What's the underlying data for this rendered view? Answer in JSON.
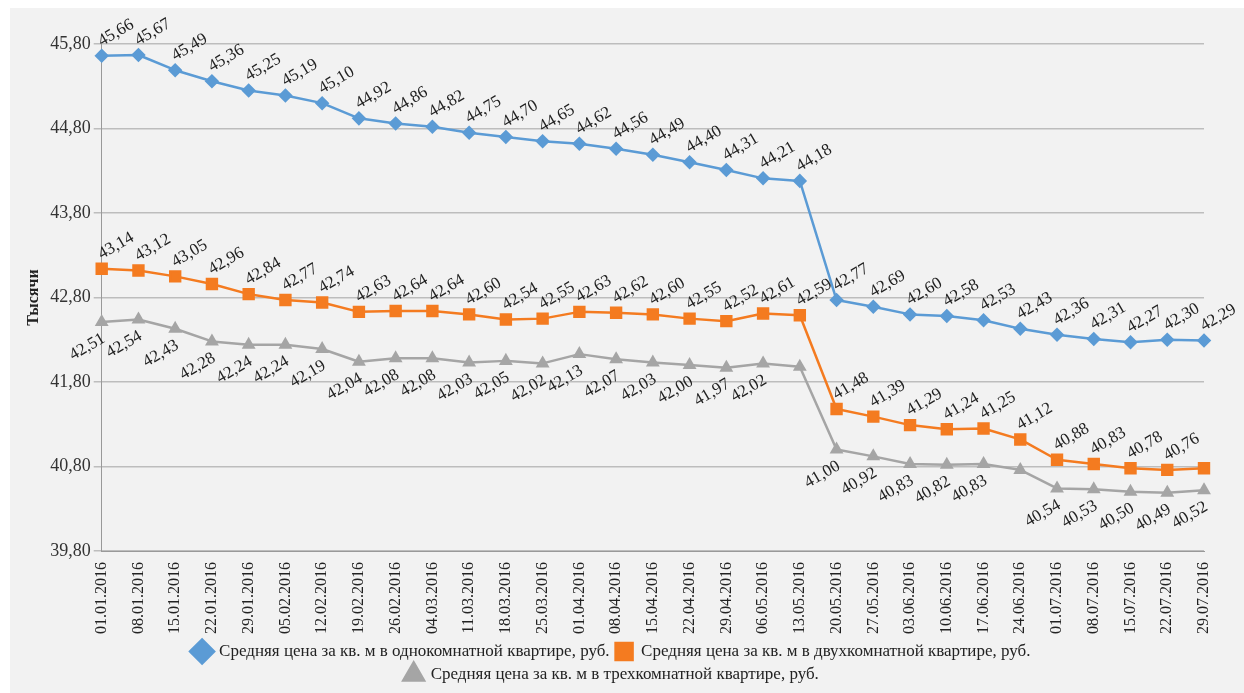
{
  "chart_data": {
    "type": "line",
    "ylabel": "Тысячи",
    "categories": [
      "01.01.2016",
      "08.01.2016",
      "15.01.2016",
      "22.01.2016",
      "29.01.2016",
      "05.02.2016",
      "12.02.2016",
      "19.02.2016",
      "26.02.2016",
      "04.03.2016",
      "11.03.2016",
      "18.03.2016",
      "25.03.2016",
      "01.04.2016",
      "08.04.2016",
      "15.04.2016",
      "22.04.2016",
      "29.04.2016",
      "06.05.2016",
      "13.05.2016",
      "20.05.2016",
      "27.05.2016",
      "03.06.2016",
      "10.06.2016",
      "17.06.2016",
      "24.06.2016",
      "01.07.2016",
      "08.07.2016",
      "15.07.2016",
      "22.07.2016",
      "29.07.2016"
    ],
    "series": [
      {
        "name": "Средняя цена за кв. м в однокомнатной квартире, руб.",
        "color": "#5b9bd5",
        "marker": "diamond",
        "values": [
          45.66,
          45.67,
          45.49,
          45.36,
          45.25,
          45.19,
          45.1,
          44.92,
          44.86,
          44.82,
          44.75,
          44.7,
          44.65,
          44.62,
          44.56,
          44.49,
          44.4,
          44.31,
          44.21,
          44.18,
          42.77,
          42.69,
          42.6,
          42.58,
          42.53,
          42.43,
          42.36,
          42.31,
          42.27,
          42.3,
          42.29
        ],
        "value_labels": [
          "45,66",
          "45,67",
          "45,49",
          "45,36",
          "45,25",
          "45,19",
          "45,10",
          "44,92",
          "44,86",
          "44,82",
          "44,75",
          "44,70",
          "44,65",
          "44,62",
          "44,56",
          "44,49",
          "44,40",
          "44,31",
          "44,21",
          "44,18",
          "42,77",
          "42,69",
          "42,60",
          "42,58",
          "42,53",
          "42,43",
          "42,36",
          "42,31",
          "42,27",
          "42,30",
          "42,29"
        ]
      },
      {
        "name": "Средняя цена за кв. м в двухкомнатной квартире, руб.",
        "color": "#f47b20",
        "marker": "square",
        "values": [
          43.14,
          43.12,
          43.05,
          42.96,
          42.84,
          42.77,
          42.74,
          42.63,
          42.64,
          42.64,
          42.6,
          42.54,
          42.55,
          42.63,
          42.62,
          42.6,
          42.55,
          42.52,
          42.61,
          42.59,
          41.48,
          41.39,
          41.29,
          41.24,
          41.25,
          41.12,
          40.88,
          40.83,
          40.78,
          40.76,
          40.78
        ],
        "value_labels": [
          "43,14",
          "43,12",
          "43,05",
          "42,96",
          "42,84",
          "42,77",
          "42,74",
          "42,63",
          "42,64",
          "42,64",
          "42,60",
          "42,54",
          "42,55",
          "42,63",
          "42,62",
          "42,60",
          "42,55",
          "42,52",
          "42,61",
          "42,59",
          "41,48",
          "41,39",
          "41,29",
          "41,24",
          "41,25",
          "41,12",
          "40,88",
          "40,83",
          "40,78",
          "40,76",
          null
        ]
      },
      {
        "name": "Средняя цена за кв. м в трехкомнатной квартире, руб.",
        "color": "#a5a5a5",
        "marker": "triangle",
        "values": [
          42.51,
          42.54,
          42.43,
          42.28,
          42.24,
          42.24,
          42.19,
          42.04,
          42.08,
          42.08,
          42.03,
          42.05,
          42.02,
          42.13,
          42.07,
          42.03,
          42.0,
          41.97,
          42.02,
          41.98,
          41.0,
          40.92,
          40.83,
          40.82,
          40.83,
          40.76,
          40.54,
          40.53,
          40.5,
          40.49,
          40.52
        ],
        "value_labels": [
          "42,51",
          "42,54",
          "42,43",
          "42,28",
          "42,24",
          "42,24",
          "42,19",
          "42,04",
          "42,08",
          "42,08",
          "42,03",
          "42,05",
          "42,02",
          "42,13",
          "42,07",
          "42,03",
          "42,00",
          "41,97",
          "42,02",
          null,
          "41,00",
          "40,92",
          "40,83",
          "40,82",
          "40,83",
          null,
          "40,54",
          "40,53",
          "40,50",
          "40,49",
          "40,52"
        ]
      }
    ],
    "ylim": [
      39.8,
      45.8
    ],
    "yticks": [
      {
        "value": 39.8,
        "label": "39,80"
      },
      {
        "value": 40.8,
        "label": "40,80"
      },
      {
        "value": 41.8,
        "label": "41,80"
      },
      {
        "value": 42.8,
        "label": "42,80"
      },
      {
        "value": 43.8,
        "label": "43,80"
      },
      {
        "value": 44.8,
        "label": "44,80"
      },
      {
        "value": 45.8,
        "label": "45,80"
      }
    ],
    "grid": "y",
    "legend": "bottom",
    "line_style": "solid"
  }
}
